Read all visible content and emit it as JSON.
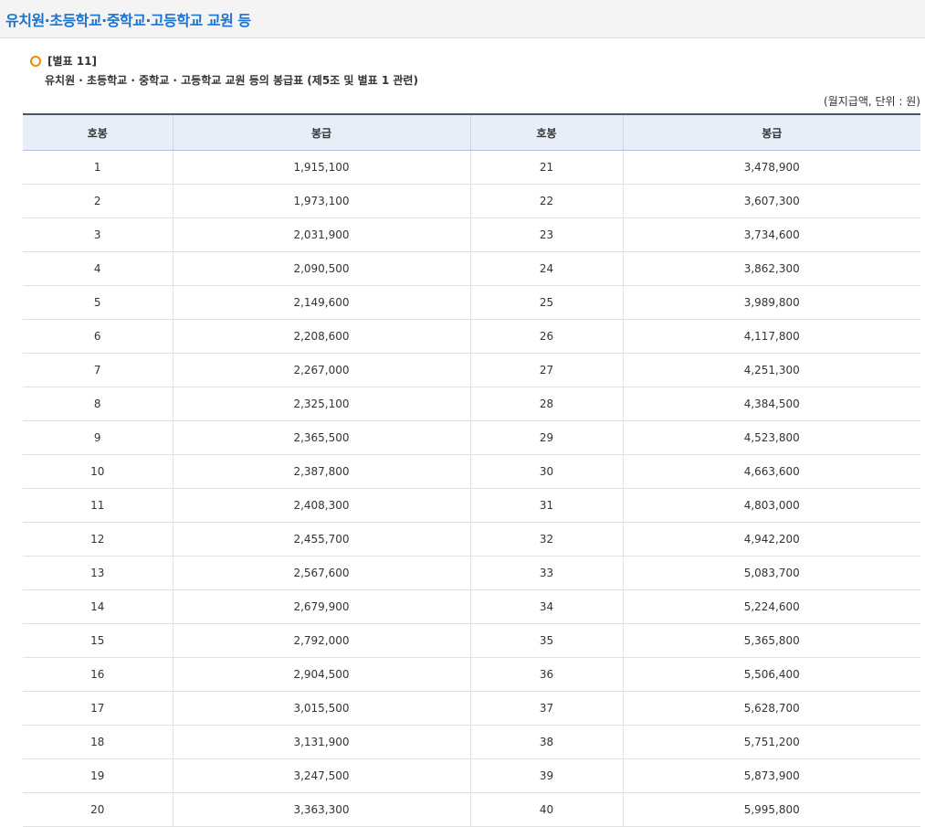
{
  "page_title": "유치원·초등학교·중학교·고등학교 교원 등",
  "caption": {
    "label": "[별표 11]",
    "subtitle": "유치원 · 초등학교 · 중학교 · 고등학교 교원 등의 봉급표 (제5조 및 별표 1 관련)",
    "icon": "ring-icon",
    "icon_color": "#f08a00"
  },
  "unit_note": "(월지급액, 단위 : 원)",
  "table": {
    "headers": [
      "호봉",
      "봉급",
      "호봉",
      "봉급"
    ],
    "rows": [
      [
        "1",
        "1,915,100",
        "21",
        "3,478,900"
      ],
      [
        "2",
        "1,973,100",
        "22",
        "3,607,300"
      ],
      [
        "3",
        "2,031,900",
        "23",
        "3,734,600"
      ],
      [
        "4",
        "2,090,500",
        "24",
        "3,862,300"
      ],
      [
        "5",
        "2,149,600",
        "25",
        "3,989,800"
      ],
      [
        "6",
        "2,208,600",
        "26",
        "4,117,800"
      ],
      [
        "7",
        "2,267,000",
        "27",
        "4,251,300"
      ],
      [
        "8",
        "2,325,100",
        "28",
        "4,384,500"
      ],
      [
        "9",
        "2,365,500",
        "29",
        "4,523,800"
      ],
      [
        "10",
        "2,387,800",
        "30",
        "4,663,600"
      ],
      [
        "11",
        "2,408,300",
        "31",
        "4,803,000"
      ],
      [
        "12",
        "2,455,700",
        "32",
        "4,942,200"
      ],
      [
        "13",
        "2,567,600",
        "33",
        "5,083,700"
      ],
      [
        "14",
        "2,679,900",
        "34",
        "5,224,600"
      ],
      [
        "15",
        "2,792,000",
        "35",
        "5,365,800"
      ],
      [
        "16",
        "2,904,500",
        "36",
        "5,506,400"
      ],
      [
        "17",
        "3,015,500",
        "37",
        "5,628,700"
      ],
      [
        "18",
        "3,131,900",
        "38",
        "5,751,200"
      ],
      [
        "19",
        "3,247,500",
        "39",
        "5,873,900"
      ],
      [
        "20",
        "3,363,300",
        "40",
        "5,995,800"
      ]
    ]
  },
  "colors": {
    "title": "#1a73d1",
    "header_bg": "#e8eef8",
    "table_top_border": "#4a5563"
  }
}
